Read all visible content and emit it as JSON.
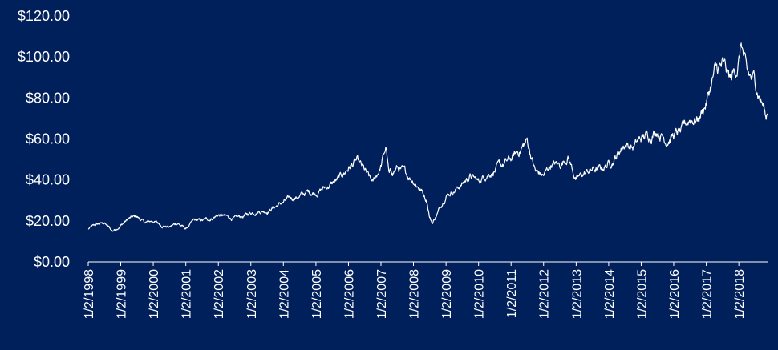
{
  "chart_data": {
    "type": "line",
    "title": "",
    "xlabel": "",
    "ylabel": "",
    "ylim": [
      0,
      120
    ],
    "y_ticks": [
      "$0.00",
      "$20.00",
      "$40.00",
      "$60.00",
      "$80.00",
      "$100.00",
      "$120.00"
    ],
    "x_tick_labels": [
      "1/2/1998",
      "1/2/1999",
      "1/2/2000",
      "1/2/2001",
      "1/2/2002",
      "1/2/2003",
      "1/2/2004",
      "1/2/2005",
      "1/2/2006",
      "1/2/2007",
      "1/2/2008",
      "1/2/2009",
      "1/2/2010",
      "1/2/2011",
      "1/2/2012",
      "1/2/2013",
      "1/2/2014",
      "1/2/2015",
      "1/2/2016",
      "1/2/2017",
      "1/2/2018"
    ],
    "x_range": [
      "1998-01-02",
      "2018-11-30"
    ],
    "grid": false,
    "legend": "none",
    "colors": {
      "background": "#00205b",
      "line": "#ffffff"
    },
    "series": [
      {
        "x": [
          "1998-01-02",
          "1998-04-01",
          "1998-07-01",
          "1998-10-01",
          "1999-01-04",
          "1999-04-01",
          "1999-07-01",
          "1999-10-01",
          "2000-01-03",
          "2000-04-03",
          "2000-07-03",
          "2000-10-02",
          "2001-01-02",
          "2001-04-02",
          "2001-07-02",
          "2001-10-01",
          "2002-01-02",
          "2002-04-01",
          "2002-07-01",
          "2002-10-01",
          "2003-01-02",
          "2003-04-01",
          "2003-07-01",
          "2003-10-01",
          "2004-01-02",
          "2004-04-01",
          "2004-07-01",
          "2004-10-01",
          "2005-01-03",
          "2005-04-01",
          "2005-07-01",
          "2005-10-03",
          "2006-01-03",
          "2006-04-03",
          "2006-07-03",
          "2006-10-02",
          "2007-01-03",
          "2007-03-01",
          "2007-04-02",
          "2007-07-02",
          "2007-10-01",
          "2008-01-02",
          "2008-04-01",
          "2008-06-02",
          "2008-07-01",
          "2008-08-01",
          "2008-10-01",
          "2008-12-01",
          "2009-01-02",
          "2009-04-01",
          "2009-07-01",
          "2009-10-01",
          "2010-01-04",
          "2010-04-01",
          "2010-07-01",
          "2010-10-01",
          "2011-01-03",
          "2011-04-01",
          "2011-07-01",
          "2011-08-15",
          "2011-10-03",
          "2012-01-03",
          "2012-04-02",
          "2012-07-02",
          "2012-10-01",
          "2013-01-02",
          "2013-04-01",
          "2013-07-01",
          "2013-10-01",
          "2014-01-02",
          "2014-04-01",
          "2014-07-01",
          "2014-10-01",
          "2015-01-02",
          "2015-04-01",
          "2015-07-01",
          "2015-10-01",
          "2016-01-04",
          "2016-04-01",
          "2016-07-01",
          "2016-10-03",
          "2017-01-03",
          "2017-04-03",
          "2017-07-03",
          "2017-10-02",
          "2018-01-02",
          "2018-02-01",
          "2018-04-02",
          "2018-07-02",
          "2018-09-04",
          "2018-10-15",
          "2018-11-01",
          "2018-11-30"
        ],
        "values": [
          16,
          18,
          19,
          15,
          18,
          21,
          22,
          19,
          20,
          18,
          17,
          19,
          16,
          20,
          20,
          21,
          23,
          22,
          21,
          22,
          24,
          25,
          25,
          27,
          29,
          31,
          32,
          34,
          34,
          36,
          38,
          41,
          46,
          49,
          44,
          38,
          47,
          56,
          42,
          46,
          43,
          40,
          35,
          30,
          22,
          19,
          24,
          30,
          33,
          35,
          38,
          42,
          39,
          43,
          45,
          47,
          50,
          54,
          59,
          52,
          44,
          42,
          48,
          47,
          52,
          40,
          43,
          45,
          45,
          48,
          52,
          58,
          56,
          60,
          62,
          65,
          60,
          62,
          63,
          70,
          70,
          78,
          92,
          95,
          88,
          98,
          107,
          90,
          88,
          80,
          75,
          70,
          76
        ]
      }
    ]
  }
}
